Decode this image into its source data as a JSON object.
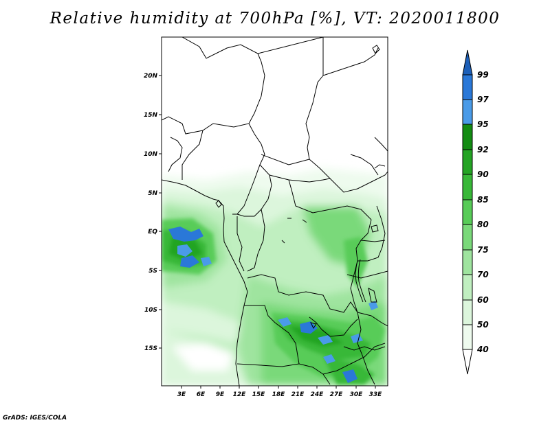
{
  "title": "Relative humidity at 700hPa [%], VT: 2020011800",
  "credit": "GrADS: IGES/COLA",
  "map": {
    "lat_ticks": [
      "20N",
      "15N",
      "10N",
      "5N",
      "EQ",
      "5S",
      "10S",
      "15S"
    ],
    "lon_ticks": [
      "3E",
      "6E",
      "9E",
      "12E",
      "15E",
      "18E",
      "21E",
      "24E",
      "27E",
      "30E",
      "33E"
    ]
  },
  "colorbar": {
    "labels": [
      "99",
      "97",
      "95",
      "92",
      "90",
      "85",
      "80",
      "75",
      "70",
      "60",
      "50",
      "40"
    ],
    "colors": {
      "gt99": "#1c5fb8",
      "97_99": "#2a78d8",
      "95_97": "#4a9be8",
      "92_95": "#138c13",
      "90_92": "#24a424",
      "85_90": "#38b838",
      "80_85": "#58cc58",
      "75_80": "#7ad97a",
      "70_75": "#9fe49f",
      "60_70": "#c0efc0",
      "50_60": "#dcf6dc",
      "40_50": "#eefbee",
      "lt40": "#ffffff"
    }
  }
}
